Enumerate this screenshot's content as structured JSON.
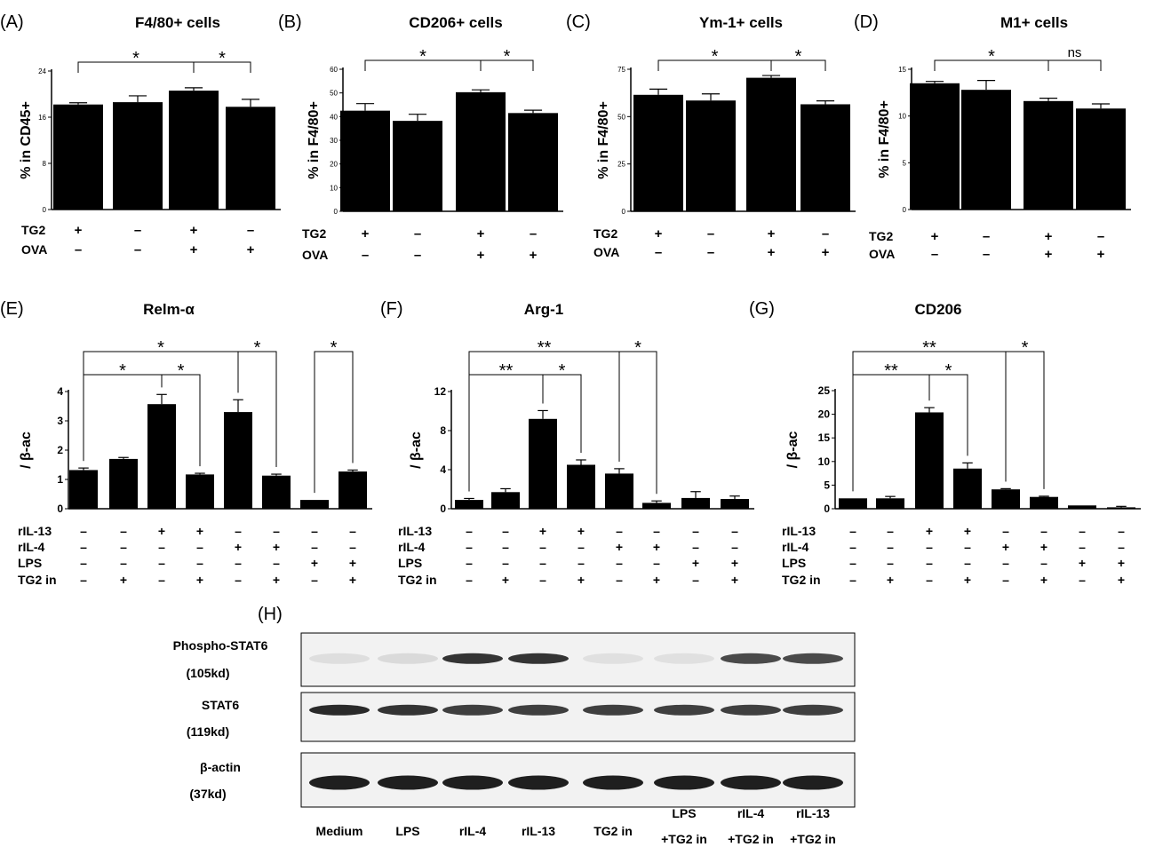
{
  "chart_data": [
    {
      "panel": "(A)",
      "type": "bar",
      "title": "F4/80+ cells",
      "ylabel": "% in CD45+",
      "ylim": [
        0,
        24
      ],
      "yticks": [
        "0",
        "8",
        "16",
        "24"
      ],
      "ytick_values": [
        0,
        8,
        16,
        24
      ],
      "values": [
        18.2,
        18.6,
        20.6,
        17.8
      ],
      "errors": [
        0.3,
        1.1,
        0.5,
        1.3
      ],
      "conditions": [
        {
          "label": "TG2",
          "marks": [
            "+",
            "–",
            "+",
            "–"
          ]
        },
        {
          "label": "OVA",
          "marks": [
            "–",
            "–",
            "+",
            "+"
          ]
        }
      ],
      "significance": [
        {
          "from": 0,
          "to": 2,
          "label": "*"
        },
        {
          "from": 2,
          "to": 3,
          "label": "*"
        }
      ]
    },
    {
      "panel": "(B)",
      "type": "bar",
      "title": "CD206+ cells",
      "ylabel": "% in F4/80+",
      "ylim": [
        0,
        60
      ],
      "yticks": [
        "0",
        "10",
        "20",
        "30",
        "40",
        "50",
        "60"
      ],
      "ytick_values": [
        0,
        10,
        20,
        30,
        40,
        50,
        60
      ],
      "values": [
        42.5,
        38.2,
        50.3,
        41.5
      ],
      "errors": [
        3.0,
        2.8,
        1.0,
        1.2
      ],
      "conditions": [
        {
          "label": "TG2",
          "marks": [
            "+",
            "–",
            "+",
            "–"
          ]
        },
        {
          "label": "OVA",
          "marks": [
            "–",
            "–",
            "+",
            "+"
          ]
        }
      ],
      "significance": [
        {
          "from": 0,
          "to": 2,
          "label": "*"
        },
        {
          "from": 2,
          "to": 3,
          "label": "*"
        }
      ]
    },
    {
      "panel": "(C)",
      "type": "bar",
      "title": "Ym-1+  cells",
      "ylabel": "% in F4/80+",
      "ylim": [
        0,
        75
      ],
      "yticks": [
        "0",
        "25",
        "50",
        "75"
      ],
      "ytick_values": [
        0,
        25,
        50,
        75
      ],
      "values": [
        61.5,
        58.5,
        70.5,
        56.5
      ],
      "errors": [
        3.0,
        3.5,
        1.2,
        1.8
      ],
      "conditions": [
        {
          "label": "TG2",
          "marks": [
            "+",
            "–",
            "+",
            "–"
          ]
        },
        {
          "label": "OVA",
          "marks": [
            "–",
            "–",
            "+",
            "+"
          ]
        }
      ],
      "significance": [
        {
          "from": 0,
          "to": 2,
          "label": "*"
        },
        {
          "from": 2,
          "to": 3,
          "label": "*"
        }
      ]
    },
    {
      "panel": "(D)",
      "type": "bar",
      "title": "M1+ cells",
      "ylabel": "% in F4/80+",
      "ylim": [
        0,
        15
      ],
      "yticks": [
        "0",
        "5",
        "10",
        "15"
      ],
      "ytick_values": [
        0,
        5,
        10,
        15
      ],
      "values": [
        13.5,
        12.8,
        11.6,
        10.8
      ],
      "errors": [
        0.2,
        1.0,
        0.3,
        0.5
      ],
      "conditions": [
        {
          "label": "TG2",
          "marks": [
            "+",
            "–",
            "+",
            "–"
          ]
        },
        {
          "label": "OVA",
          "marks": [
            "–",
            "–",
            "+",
            "+"
          ]
        }
      ],
      "significance": [
        {
          "from": 0,
          "to": 2,
          "label": "*"
        },
        {
          "from": 2,
          "to": 3,
          "label": "ns"
        }
      ]
    },
    {
      "panel": "(E)",
      "type": "bar",
      "title": "Relm-α",
      "ylabel": "/ β-ac",
      "ylim": [
        0,
        4
      ],
      "yticks": [
        "0",
        "1",
        "2",
        "3",
        "4"
      ],
      "ytick_values": [
        0,
        1,
        2,
        3,
        4
      ],
      "values": [
        1.32,
        1.7,
        3.57,
        1.17,
        3.3,
        1.13,
        0.3,
        1.27
      ],
      "errors": [
        0.07,
        0.05,
        0.33,
        0.04,
        0.42,
        0.05,
        0.0,
        0.05
      ],
      "conditions": [
        {
          "label": "rIL-13",
          "marks": [
            "–",
            "–",
            "+",
            "+",
            "–",
            "–",
            "–",
            "–"
          ]
        },
        {
          "label": "rIL-4",
          "marks": [
            "–",
            "–",
            "–",
            "–",
            "+",
            "+",
            "–",
            "–"
          ]
        },
        {
          "label": "LPS",
          "marks": [
            "–",
            "–",
            "–",
            "–",
            "–",
            "–",
            "+",
            "+"
          ]
        },
        {
          "label": "TG2 in",
          "marks": [
            "–",
            "+",
            "–",
            "+",
            "–",
            "+",
            "–",
            "+"
          ]
        }
      ],
      "significance": [
        {
          "from": 0,
          "to": 2,
          "label": "*"
        },
        {
          "from": 2,
          "to": 3,
          "label": "*"
        },
        {
          "from": 0,
          "to": 4,
          "label": "*"
        },
        {
          "from": 4,
          "to": 5,
          "label": "*"
        },
        {
          "from": 6,
          "to": 7,
          "label": "*"
        }
      ]
    },
    {
      "panel": "(F)",
      "type": "bar",
      "title": "Arg-1",
      "ylabel": "/ β-ac",
      "ylim": [
        0,
        12
      ],
      "yticks": [
        "0",
        "4",
        "8",
        "12"
      ],
      "ytick_values": [
        0,
        4,
        8,
        12
      ],
      "values": [
        0.9,
        1.7,
        9.2,
        4.5,
        3.6,
        0.6,
        1.1,
        1.0
      ],
      "errors": [
        0.15,
        0.35,
        0.85,
        0.5,
        0.5,
        0.2,
        0.65,
        0.3
      ],
      "conditions": [
        {
          "label": "rIL-13",
          "marks": [
            "–",
            "–",
            "+",
            "+",
            "–",
            "–",
            "–",
            "–"
          ]
        },
        {
          "label": "rIL-4",
          "marks": [
            "–",
            "–",
            "–",
            "–",
            "+",
            "+",
            "–",
            "–"
          ]
        },
        {
          "label": "LPS",
          "marks": [
            "–",
            "–",
            "–",
            "–",
            "–",
            "–",
            "+",
            "+"
          ]
        },
        {
          "label": "TG2 in",
          "marks": [
            "–",
            "+",
            "–",
            "+",
            "–",
            "+",
            "–",
            "+"
          ]
        }
      ],
      "significance": [
        {
          "from": 0,
          "to": 2,
          "label": "**"
        },
        {
          "from": 2,
          "to": 3,
          "label": "*"
        },
        {
          "from": 0,
          "to": 4,
          "label": "**"
        },
        {
          "from": 4,
          "to": 5,
          "label": "*"
        }
      ]
    },
    {
      "panel": "(G)",
      "type": "bar",
      "title": "CD206",
      "ylabel": "/ β-ac",
      "ylim": [
        0,
        25
      ],
      "yticks": [
        "0",
        "5",
        "10",
        "15",
        "20",
        "25"
      ],
      "ytick_values": [
        0,
        5,
        10,
        15,
        20,
        25
      ],
      "values": [
        2.2,
        2.2,
        20.4,
        8.5,
        4.1,
        2.5,
        0.7,
        0.3
      ],
      "errors": [
        0.0,
        0.4,
        1.0,
        1.2,
        0.15,
        0.15,
        0.0,
        0.2
      ],
      "conditions": [
        {
          "label": "rIL-13",
          "marks": [
            "–",
            "–",
            "+",
            "+",
            "–",
            "–",
            "–",
            "–"
          ]
        },
        {
          "label": "rIL-4",
          "marks": [
            "–",
            "–",
            "–",
            "–",
            "+",
            "+",
            "–",
            "–"
          ]
        },
        {
          "label": "LPS",
          "marks": [
            "–",
            "–",
            "–",
            "–",
            "–",
            "–",
            "+",
            "+"
          ]
        },
        {
          "label": "TG2 in",
          "marks": [
            "–",
            "+",
            "–",
            "+",
            "–",
            "+",
            "–",
            "+"
          ]
        }
      ],
      "significance": [
        {
          "from": 0,
          "to": 2,
          "label": "**"
        },
        {
          "from": 2,
          "to": 3,
          "label": "*"
        },
        {
          "from": 0,
          "to": 4,
          "label": "**"
        },
        {
          "from": 4,
          "to": 5,
          "label": "*"
        }
      ]
    }
  ],
  "blot": {
    "panel": "(H)",
    "rows": [
      {
        "name": "Phospho-STAT6",
        "size": "(105kd)",
        "intensity": [
          0.06,
          0.08,
          0.85,
          0.85,
          0.05,
          0.05,
          0.75,
          0.75
        ]
      },
      {
        "name": "STAT6",
        "size": "(119kd)",
        "intensity": [
          0.9,
          0.85,
          0.8,
          0.8,
          0.8,
          0.8,
          0.8,
          0.8
        ]
      },
      {
        "name": "β-actin",
        "size": "(37kd)",
        "intensity": [
          0.95,
          0.95,
          0.95,
          0.95,
          0.95,
          0.95,
          0.95,
          0.95
        ]
      }
    ],
    "lanes": [
      [
        "Medium"
      ],
      [
        "LPS"
      ],
      [
        "rIL-4"
      ],
      [
        "rIL-13"
      ],
      [
        "TG2 in"
      ],
      [
        "LPS",
        "+TG2 in"
      ],
      [
        "rIL-4",
        "+TG2 in"
      ],
      [
        "rIL-13",
        "+TG2 in"
      ]
    ]
  }
}
